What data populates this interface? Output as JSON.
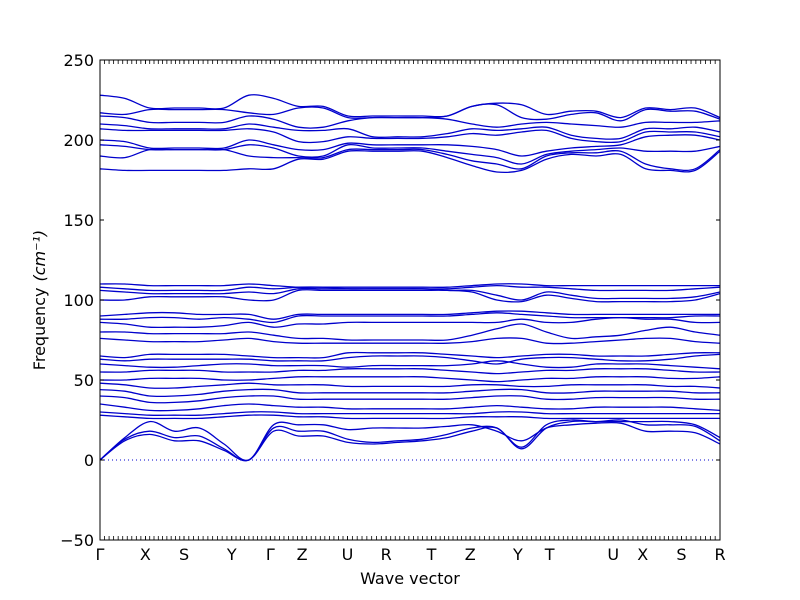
{
  "chart_data": {
    "type": "line",
    "title": "",
    "xlabel": "Wave vector",
    "ylabel": "Frequency",
    "ylabel_unit": "(cm⁻¹)",
    "ylim": [
      -50,
      250
    ],
    "yticks": [
      -50,
      0,
      50,
      100,
      150,
      200,
      250
    ],
    "xticks": [
      {
        "label": "Γ",
        "x": 0.0
      },
      {
        "label": "X",
        "x": 1.0
      },
      {
        "label": "S",
        "x": 1.85
      },
      {
        "label": "Y",
        "x": 2.9
      },
      {
        "label": "Γ",
        "x": 3.75
      },
      {
        "label": "Z",
        "x": 4.45
      },
      {
        "label": "U",
        "x": 5.45
      },
      {
        "label": "R",
        "x": 6.3
      },
      {
        "label": "T",
        "x": 7.3
      },
      {
        "label": "Z",
        "x": 8.15
      },
      {
        "label": "Y",
        "x": 9.2
      },
      {
        "label": "T",
        "x": 9.9
      },
      {
        "label": "U",
        "x": 11.3
      },
      {
        "label": "X",
        "x": 11.95
      },
      {
        "label": "S",
        "x": 12.8
      },
      {
        "label": "R",
        "x": 13.65
      }
    ],
    "xlim": [
      0,
      13.65
    ],
    "zero_line": {
      "y": 0,
      "style": "dotted"
    },
    "line_color": "#0000cc",
    "series": [
      {
        "values": [
          228,
          226,
          220,
          220,
          220,
          220,
          228,
          226,
          221,
          221,
          215,
          215,
          215,
          215,
          215,
          221,
          223,
          222,
          216,
          218,
          218,
          214,
          220,
          219,
          220,
          214
        ]
      },
      {
        "values": [
          217,
          216,
          219,
          219,
          219,
          219,
          217,
          216,
          220,
          220,
          214,
          214,
          214,
          214,
          215,
          221,
          222,
          214,
          213,
          216,
          217,
          212,
          219,
          218,
          218,
          213
        ]
      },
      {
        "values": [
          215,
          214,
          211,
          211,
          211,
          211,
          215,
          213,
          208,
          208,
          212,
          214,
          214,
          214,
          213,
          210,
          208,
          210,
          211,
          210,
          209,
          208,
          211,
          211,
          211,
          212
        ]
      },
      {
        "values": [
          210,
          209,
          207,
          207,
          207,
          207,
          210,
          208,
          206,
          206,
          207,
          202,
          202,
          202,
          204,
          207,
          206,
          207,
          208,
          203,
          201,
          201,
          207,
          207,
          208,
          205
        ]
      },
      {
        "values": [
          207,
          206,
          206,
          206,
          206,
          206,
          207,
          205,
          199,
          199,
          202,
          201,
          201,
          201,
          202,
          204,
          203,
          205,
          206,
          201,
          199,
          199,
          205,
          205,
          205,
          202
        ]
      },
      {
        "values": [
          200,
          199,
          195,
          195,
          195,
          195,
          200,
          197,
          194,
          194,
          198,
          197,
          197,
          197,
          197,
          196,
          194,
          190,
          193,
          195,
          196,
          197,
          202,
          203,
          203,
          200
        ]
      },
      {
        "values": [
          197,
          196,
          194,
          194,
          194,
          194,
          197,
          195,
          190,
          190,
          197,
          195,
          195,
          195,
          193,
          191,
          189,
          185,
          191,
          193,
          194,
          195,
          193,
          193,
          193,
          196
        ]
      },
      {
        "values": [
          190,
          189,
          194,
          194,
          194,
          194,
          190,
          189,
          189,
          189,
          194,
          194,
          194,
          194,
          191,
          187,
          185,
          182,
          190,
          192,
          192,
          193,
          185,
          182,
          182,
          194
        ]
      },
      {
        "values": [
          182,
          181,
          181,
          181,
          181,
          181,
          182,
          182,
          188,
          188,
          193,
          193,
          193,
          193,
          189,
          184,
          180,
          181,
          188,
          191,
          190,
          191,
          182,
          181,
          181,
          193
        ]
      },
      {
        "values": [
          110,
          110,
          109,
          109,
          109,
          109,
          110,
          109,
          108,
          108,
          108,
          108,
          108,
          108,
          108,
          109,
          110,
          110,
          109,
          109,
          109,
          109,
          109,
          109,
          109,
          109
        ]
      },
      {
        "values": [
          108,
          107,
          106,
          106,
          106,
          106,
          108,
          107,
          108,
          108,
          107,
          107,
          107,
          107,
          107,
          108,
          109,
          108,
          108,
          107,
          106,
          106,
          106,
          106,
          107,
          108
        ]
      },
      {
        "values": [
          106,
          105,
          104,
          104,
          104,
          104,
          105,
          104,
          107,
          107,
          107,
          107,
          107,
          107,
          106,
          106,
          103,
          100,
          105,
          103,
          101,
          101,
          101,
          101,
          102,
          105
        ]
      },
      {
        "values": [
          100,
          100,
          102,
          102,
          102,
          102,
          100,
          100,
          106,
          106,
          106,
          106,
          106,
          106,
          106,
          105,
          100,
          99,
          103,
          101,
          99,
          99,
          99,
          99,
          100,
          104
        ]
      },
      {
        "values": [
          90,
          91,
          92,
          92,
          91,
          91,
          91,
          88,
          91,
          91,
          91,
          91,
          91,
          91,
          91,
          92,
          93,
          93,
          92,
          91,
          91,
          91,
          91,
          91,
          91,
          91
        ]
      },
      {
        "values": [
          88,
          88,
          89,
          89,
          88,
          89,
          88,
          86,
          90,
          90,
          90,
          90,
          90,
          90,
          90,
          91,
          92,
          91,
          90,
          89,
          89,
          89,
          89,
          89,
          90,
          90
        ]
      },
      {
        "values": [
          86,
          85,
          83,
          83,
          83,
          84,
          86,
          83,
          85,
          85,
          86,
          86,
          86,
          86,
          86,
          86,
          86,
          88,
          86,
          86,
          88,
          89,
          88,
          88,
          86,
          86
        ]
      },
      {
        "values": [
          80,
          80,
          79,
          79,
          79,
          79,
          80,
          78,
          76,
          76,
          75,
          75,
          75,
          75,
          75,
          78,
          82,
          85,
          80,
          76,
          77,
          78,
          81,
          83,
          80,
          78
        ]
      },
      {
        "values": [
          76,
          75,
          74,
          74,
          74,
          75,
          76,
          74,
          73,
          73,
          73,
          73,
          73,
          73,
          73,
          74,
          76,
          76,
          73,
          73,
          74,
          75,
          76,
          76,
          74,
          73
        ]
      },
      {
        "values": [
          65,
          64,
          66,
          66,
          66,
          66,
          65,
          64,
          64,
          64,
          67,
          67,
          67,
          67,
          66,
          65,
          64,
          65,
          66,
          66,
          65,
          65,
          65,
          66,
          67,
          67
        ]
      },
      {
        "values": [
          63,
          62,
          63,
          63,
          63,
          63,
          63,
          62,
          62,
          62,
          64,
          65,
          65,
          65,
          64,
          62,
          60,
          63,
          64,
          64,
          63,
          62,
          62,
          63,
          65,
          66
        ]
      },
      {
        "values": [
          60,
          59,
          58,
          58,
          59,
          60,
          60,
          59,
          59,
          59,
          58,
          59,
          59,
          59,
          59,
          60,
          62,
          60,
          58,
          58,
          60,
          60,
          60,
          59,
          58,
          57
        ]
      },
      {
        "values": [
          55,
          55,
          56,
          56,
          56,
          55,
          55,
          55,
          56,
          56,
          57,
          57,
          57,
          57,
          56,
          55,
          54,
          55,
          56,
          56,
          57,
          57,
          57,
          56,
          55,
          55
        ]
      },
      {
        "values": [
          50,
          50,
          51,
          51,
          51,
          50,
          50,
          51,
          52,
          52,
          52,
          52,
          52,
          52,
          51,
          50,
          49,
          50,
          51,
          51,
          52,
          52,
          52,
          51,
          51,
          52
        ]
      },
      {
        "values": [
          48,
          47,
          45,
          45,
          46,
          47,
          48,
          47,
          47,
          47,
          46,
          46,
          46,
          46,
          46,
          47,
          47,
          46,
          46,
          47,
          47,
          47,
          47,
          46,
          46,
          45
        ]
      },
      {
        "values": [
          44,
          43,
          40,
          40,
          41,
          43,
          44,
          44,
          42,
          42,
          42,
          42,
          42,
          42,
          42,
          43,
          44,
          44,
          42,
          42,
          43,
          43,
          43,
          43,
          42,
          42
        ]
      },
      {
        "values": [
          40,
          39,
          36,
          36,
          37,
          39,
          40,
          40,
          38,
          38,
          38,
          38,
          38,
          38,
          38,
          39,
          40,
          40,
          38,
          38,
          39,
          39,
          39,
          39,
          38,
          38
        ]
      },
      {
        "values": [
          35,
          33,
          31,
          31,
          32,
          34,
          35,
          34,
          33,
          33,
          32,
          32,
          32,
          32,
          32,
          33,
          34,
          33,
          32,
          32,
          33,
          33,
          33,
          33,
          32,
          31
        ]
      },
      {
        "values": [
          30,
          29,
          28,
          28,
          28,
          29,
          30,
          30,
          29,
          29,
          29,
          29,
          29,
          29,
          29,
          29,
          30,
          30,
          29,
          29,
          29,
          29,
          29,
          29,
          29,
          29
        ]
      },
      {
        "values": [
          28,
          27,
          26,
          26,
          26,
          27,
          28,
          28,
          27,
          27,
          26,
          26,
          26,
          26,
          26,
          27,
          27,
          27,
          26,
          26,
          26,
          26,
          26,
          26,
          26,
          26
        ]
      },
      {
        "values": [
          0,
          14,
          24,
          18,
          20,
          10,
          0,
          22,
          22,
          22,
          19,
          20,
          20,
          20,
          21,
          22,
          18,
          12,
          20,
          22,
          23,
          23,
          18,
          18,
          17,
          10
        ]
      },
      {
        "values": [
          0,
          13,
          18,
          14,
          15,
          7,
          0,
          20,
          18,
          18,
          13,
          11,
          12,
          13,
          16,
          20,
          20,
          8,
          22,
          25,
          24,
          25,
          22,
          22,
          21,
          12
        ]
      },
      {
        "values": [
          0,
          12,
          16,
          12,
          12,
          6,
          0,
          18,
          15,
          15,
          11,
          10,
          11,
          12,
          14,
          18,
          20,
          7,
          20,
          24,
          24,
          24,
          24,
          24,
          22,
          14
        ]
      }
    ]
  }
}
